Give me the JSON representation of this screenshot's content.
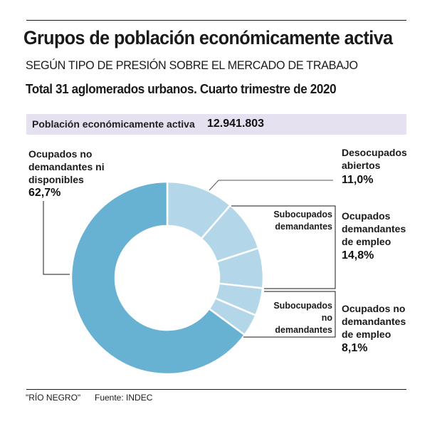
{
  "header": {
    "title": "Grupos de población económicamente activa",
    "subtitle": "SEGÚN TIPO DE PRESIÓN SOBRE EL MERCADO DE TRABAJO",
    "subtitle2": "Total 31 aglomerados urbanos. Cuarto trimestre de 2020"
  },
  "pea": {
    "label": "Población económicamente activa",
    "value": "12.941.803"
  },
  "labels": {
    "no_demandantes": {
      "line1": "Ocupados no",
      "line2": "demandantes ni",
      "line3": "disponibles",
      "pct": "62,7%"
    },
    "desocupados": {
      "line1": "Desocupados",
      "line2": "abiertos",
      "pct": "11,0%"
    },
    "ocupados_demandantes": {
      "line1": "Ocupados",
      "line2": "demandantes",
      "line3": "de empleo",
      "pct": "14,8%"
    },
    "ocupados_no_demandantes": {
      "line1": "Ocupados no",
      "line2": "demandantes",
      "line3": "de empleo",
      "pct": "8,1%"
    },
    "sub_dem": {
      "line1": "Subocupados",
      "line2": "demandantes"
    },
    "sub_no_dem": {
      "line1": "Subocupados",
      "line2": "no",
      "line3": "demandantes"
    }
  },
  "footer": {
    "credit": "\"RÍO NEGRO\"",
    "source": "Fuente: INDEC"
  },
  "colors": {
    "main": "#67b1d3",
    "light": "#b3d7e8",
    "band": "#e5e1f1"
  },
  "chart_data": {
    "type": "pie",
    "donut": true,
    "title": "Grupos de población económicamente activa",
    "start": "top, clockwise",
    "slices": [
      {
        "name": "Desocupados abiertos",
        "value": 11.0,
        "color": "light"
      },
      {
        "name": "Subocupados demandantes",
        "value": 8.3,
        "color": "light",
        "group": "Ocupados demandantes de empleo"
      },
      {
        "name": "Ocupados demandantes (otros)",
        "value": 6.5,
        "color": "light",
        "group": "Ocupados demandantes de empleo"
      },
      {
        "name": "Subocupados no demandantes",
        "value": 4.5,
        "color": "light",
        "group": "Ocupados no demandantes de empleo"
      },
      {
        "name": "Ocupados no demandantes (otros)",
        "value": 3.6,
        "color": "light",
        "group": "Ocupados no demandantes de empleo"
      },
      {
        "name": "Ocupados no demandantes ni disponibles",
        "value": 62.7,
        "color": "main"
      }
    ],
    "groups": [
      {
        "name": "Ocupados demandantes de empleo",
        "value": 14.8
      },
      {
        "name": "Ocupados no demandantes de empleo",
        "value": 8.1
      }
    ]
  }
}
